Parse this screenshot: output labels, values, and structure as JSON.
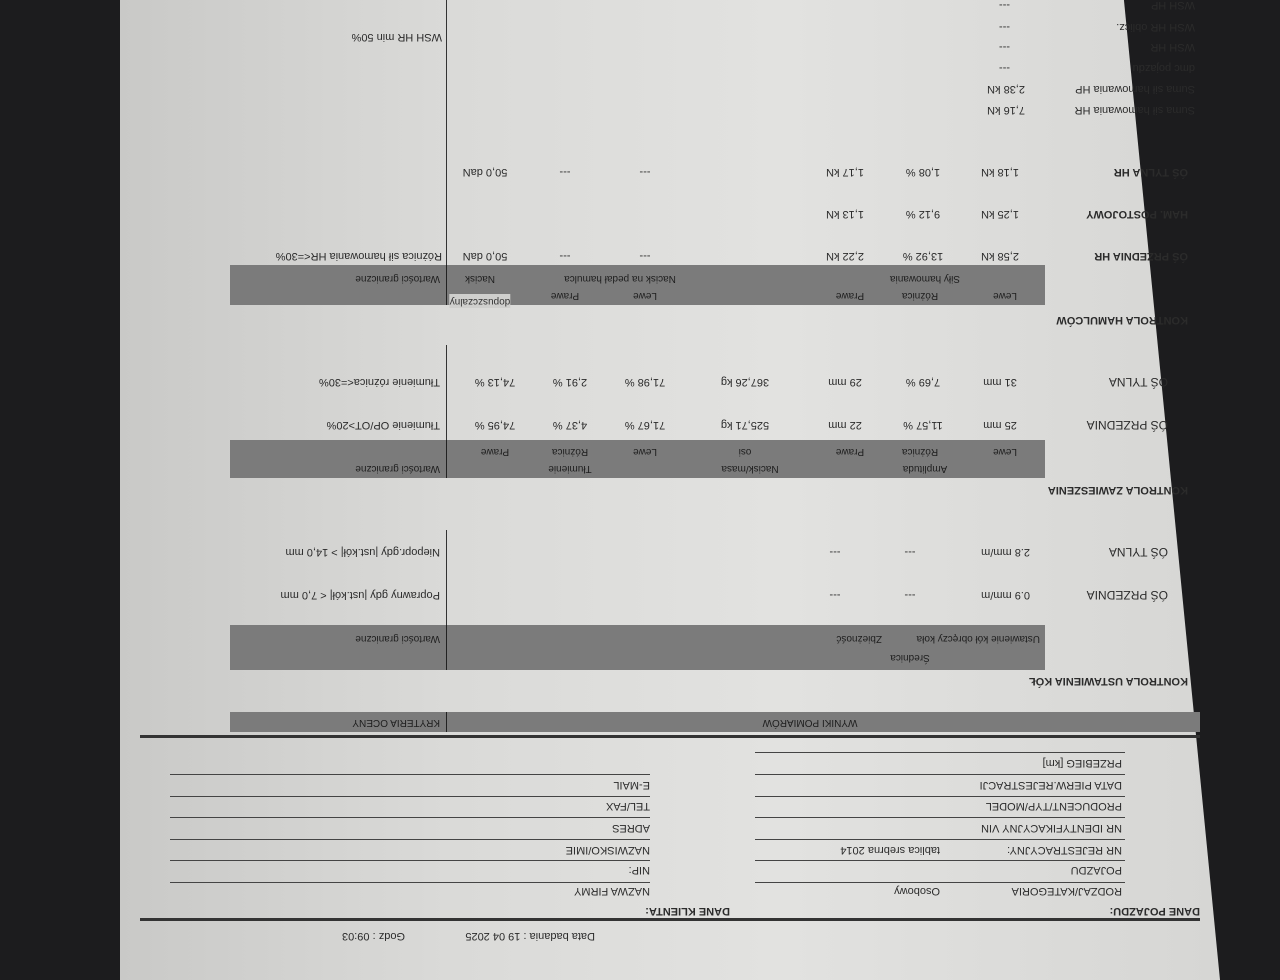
{
  "header": {
    "date": "Data badania : 19 04 2025",
    "time": "Godz : 09:03"
  },
  "vehicle": {
    "title": "DANE POJAZDU:",
    "rows": [
      {
        "label": "RODZAJ/KATEGORIA",
        "value": "Osobowy"
      },
      {
        "label": "POJAZDU",
        "value": ""
      },
      {
        "label": "NR REJESTRACYJNY:",
        "value": "tablica srebrna 2014"
      },
      {
        "label": "NR IDENTYFIKACYJNY VIN",
        "value": ""
      },
      {
        "label": "PRODUCENT/TYP/MODEL",
        "value": ""
      },
      {
        "label": "DATA PIERW.REJESTRACJI",
        "value": ""
      },
      {
        "label": "PRZEBIEG [km]",
        "value": ""
      }
    ]
  },
  "client": {
    "title": "DANE KLIENTA:",
    "rows": [
      "NAZWA FIRMY",
      "NIP:",
      "NAZWISKO/IMIE",
      "ADRES",
      "TEL/FAX",
      "E-MAIL"
    ]
  },
  "results_band": {
    "left": "WYNIKI POMIARÓW",
    "right": "KRYTERIA OCENY"
  },
  "alignment": {
    "title": "KONTROLA USTAWIENIA KÓŁ",
    "h1": "Średnica",
    "h2a": "Ustawienie kół  obręczy koła",
    "h2b": "Zbieżność",
    "limits": "Wartości graniczne",
    "rows": [
      {
        "label": "ÓŚ PRZEDNIA",
        "v1": "0.9 mm/m",
        "v2": "---",
        "v3": "---",
        "crit": "Poprawny gdy |ust.kół| < 7,0 mm"
      },
      {
        "label": "ÓŚ TYLNA",
        "v1": "2.8 mm/m",
        "v2": "---",
        "v3": "---",
        "crit": "Niepopr.gdy |ust.kół| > 14,0 mm"
      }
    ]
  },
  "suspension": {
    "title": "KONTROLA ZAWIESZENIA",
    "groups": [
      "Amplituda",
      "Nacisk/masa",
      "Tłumienie",
      "Wartości graniczne"
    ],
    "sub": [
      "Lewe",
      "Różnica",
      "Prawe",
      "osi",
      "Lewe",
      "Różnica",
      "Prawe"
    ],
    "rows": [
      {
        "label": "ÓŚ PRZEDNIA",
        "vals": [
          "25 mm",
          "11,57 %",
          "22 mm",
          "525,71 kg",
          "71,67 %",
          "4,37 %",
          "74,95 %"
        ],
        "crit": "Tłumienie OP/OT>20%"
      },
      {
        "label": "ÓŚ TYLNA",
        "vals": [
          "31 mm",
          "7,69 %",
          "29 mm",
          "367,26 kg",
          "71,98 %",
          "2,91 %",
          "74,13 %"
        ],
        "crit": "Tłumienie różnica<=30%"
      }
    ]
  },
  "brakes": {
    "title": "KONTROLA HAMULCÓW",
    "groups": [
      "Siły hamowania",
      "Nacisk na pedał hamulca",
      "Nacisk",
      "Wartości graniczne"
    ],
    "sub": [
      "Lewe",
      "Różnica",
      "Prawe",
      "Lewe",
      "Prawe",
      "dopuszczalny"
    ],
    "rows": [
      {
        "label": "ÓŚ PRZEDNIA HR",
        "vals": [
          "2,58 kN",
          "13,92 %",
          "2,22 kN",
          "---",
          "---",
          "50,0 daN"
        ],
        "crit": "Różnica sił hamowania HR<=30%"
      },
      {
        "label": "HAM. POSTOJOWY",
        "vals": [
          "1,25 kN",
          "9,12 %",
          "1,13 kN",
          "",
          "",
          ""
        ],
        "crit": ""
      },
      {
        "label": "ÓŚ TYLNA HR",
        "vals": [
          "1,18 kN",
          "1,08 %",
          "1,17 kN",
          "---",
          "---",
          "50,0 daN"
        ],
        "crit": ""
      }
    ],
    "summary": [
      {
        "label": "Suma sił hamowania HR",
        "value": "7,16 kN"
      },
      {
        "label": "Suma sił hamowania HP",
        "value": "2,38 kN"
      },
      {
        "label": "dmc pojazdu",
        "value": "---"
      },
      {
        "label": "WSH HR",
        "value": "---"
      },
      {
        "label": "WSH HR oblicz.",
        "value": "---"
      },
      {
        "label": "WSH HP",
        "value": "---"
      }
    ],
    "summary_crit": "WSH HR min 50%"
  },
  "colors": {
    "paper": "#dcdcda",
    "band": "#7b7b7b",
    "text": "#2b2b2b",
    "background": "#1c1c1e"
  }
}
